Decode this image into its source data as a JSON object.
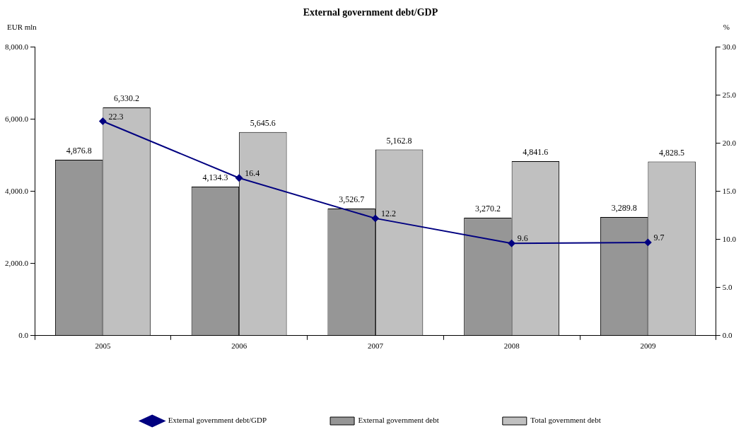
{
  "chart_data": {
    "type": "bar",
    "title": "External government debt/GDP",
    "ylabel": "EUR mln",
    "y2label": "%",
    "categories": [
      "2005",
      "2006",
      "2007",
      "2008",
      "2009"
    ],
    "series": [
      {
        "name": "External government debt",
        "color": "#969696",
        "values": [
          4876.8,
          4134.3,
          3526.7,
          3270.2,
          3289.8
        ],
        "value_labels": [
          "4,876.8",
          "4,134.3",
          "3,526.7",
          "3,270.2",
          "3,289.8"
        ]
      },
      {
        "name": "Total government debt",
        "color": "#c0c0c0",
        "values": [
          6330.2,
          5645.6,
          5162.8,
          4841.6,
          4828.5
        ],
        "value_labels": [
          "6,330.2",
          "5,645.6",
          "5,162.8",
          "4,841.6",
          "4,828.5"
        ]
      },
      {
        "name": "External government debt/GDP",
        "type": "line",
        "axis": "y2",
        "color": "#000080",
        "marker": "diamond",
        "values": [
          22.3,
          16.4,
          12.2,
          9.6,
          9.7
        ],
        "value_labels": [
          "22.3",
          "16.4",
          "12.2",
          "9.6",
          "9.7"
        ]
      }
    ],
    "ylim": [
      0,
      8000
    ],
    "yticks": [
      {
        "value": 0,
        "label": "0.0"
      },
      {
        "value": 2000,
        "label": "2,000.0"
      },
      {
        "value": 4000,
        "label": "4,000.0"
      },
      {
        "value": 6000,
        "label": "6,000.0"
      },
      {
        "value": 8000,
        "label": "8,000.0"
      }
    ],
    "y2lim": [
      0,
      30
    ],
    "y2ticks": [
      {
        "value": 0,
        "label": "0.0"
      },
      {
        "value": 5,
        "label": "5.0"
      },
      {
        "value": 10,
        "label": "10.0"
      },
      {
        "value": 15,
        "label": "15.0"
      },
      {
        "value": 20,
        "label": "20.0"
      },
      {
        "value": 25,
        "label": "25.0"
      },
      {
        "value": 30,
        "label": "30.0"
      }
    ],
    "grid": false,
    "legend": "bottom"
  }
}
